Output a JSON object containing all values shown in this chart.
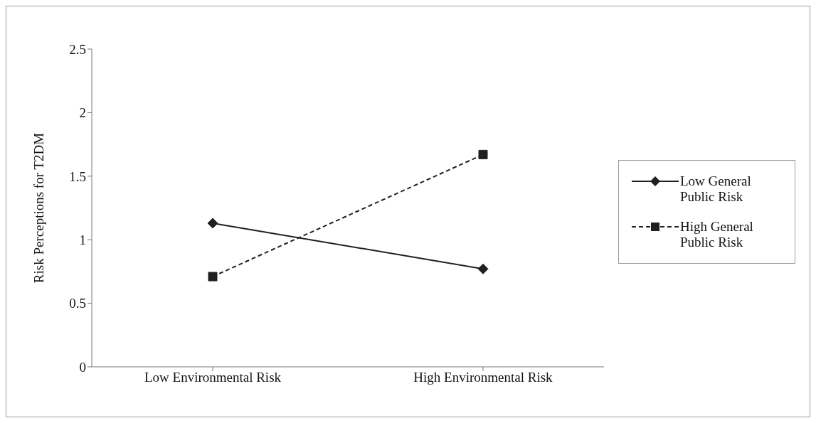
{
  "chart_data": {
    "type": "line",
    "ylabel": "Risk Perceptions for T2DM",
    "categories": [
      "Low Environmental Risk",
      "High Environmental Risk"
    ],
    "series": [
      {
        "name": "Low General Public Risk",
        "color": "#231f20",
        "values": [
          1.13,
          0.77
        ],
        "marker": "diamond",
        "line_style": "solid"
      },
      {
        "name": "High General Public Risk",
        "color": "#231f20",
        "values": [
          0.71,
          1.67
        ],
        "marker": "square",
        "line_style": "dashed"
      }
    ],
    "ylim": [
      0,
      2.5
    ],
    "yticks": [
      0,
      0.5,
      1,
      1.5,
      2,
      2.5
    ],
    "grid": false,
    "legend": "right"
  }
}
